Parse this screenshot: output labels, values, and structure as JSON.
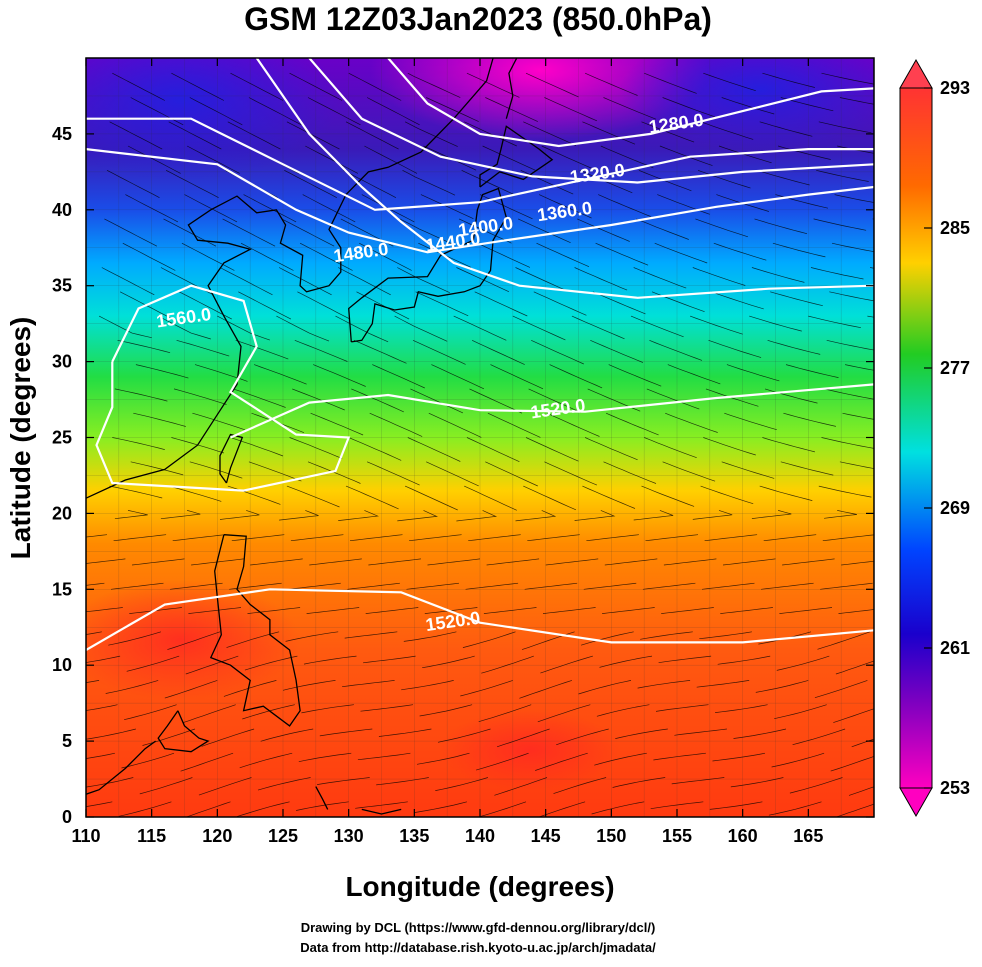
{
  "title": "GSM 12Z03Jan2023 (850.0hPa)",
  "axes": {
    "x_label": "Longitude (degrees)",
    "y_label": "Latitude  (degrees)",
    "x_ticks": [
      "110",
      "115",
      "120",
      "125",
      "130",
      "135",
      "140",
      "145",
      "150",
      "155",
      "160",
      "165"
    ],
    "y_ticks": [
      "0",
      "5",
      "10",
      "15",
      "20",
      "25",
      "30",
      "35",
      "40",
      "45"
    ],
    "lon_range": [
      110,
      170
    ],
    "lat_range": [
      0,
      50
    ]
  },
  "colorbar": {
    "labels": [
      "293",
      "285",
      "277",
      "269",
      "261",
      "253"
    ],
    "range": [
      253,
      293
    ],
    "colors": [
      "#ff3333",
      "#ff6a00",
      "#ffd000",
      "#22cc22",
      "#00e0e0",
      "#0044ff",
      "#1a00cc",
      "#8000c0",
      "#ff00c0"
    ]
  },
  "contours": [
    {
      "value": "1280.0",
      "lon": 155.0,
      "lat": 45.3
    },
    {
      "value": "1320.0",
      "lon": 149.0,
      "lat": 42.0
    },
    {
      "value": "1360.0",
      "lon": 146.5,
      "lat": 39.5
    },
    {
      "value": "1400.0",
      "lon": 140.5,
      "lat": 38.5
    },
    {
      "value": "1440.0",
      "lon": 138.0,
      "lat": 37.5
    },
    {
      "value": "1480.0",
      "lon": 131.0,
      "lat": 36.8
    },
    {
      "value": "1560.0",
      "lon": 117.5,
      "lat": 32.5
    },
    {
      "value": "1520.0",
      "lon": 146.0,
      "lat": 26.5
    },
    {
      "value": "1520.0",
      "lon": 138.0,
      "lat": 12.5
    }
  ],
  "credits": {
    "line1": "Drawing by DCL (https://www.gfd-dennou.org/library/dcl/)",
    "line2": "Data from http://database.rish.kyoto-u.ac.jp/arch/jmadata/"
  }
}
